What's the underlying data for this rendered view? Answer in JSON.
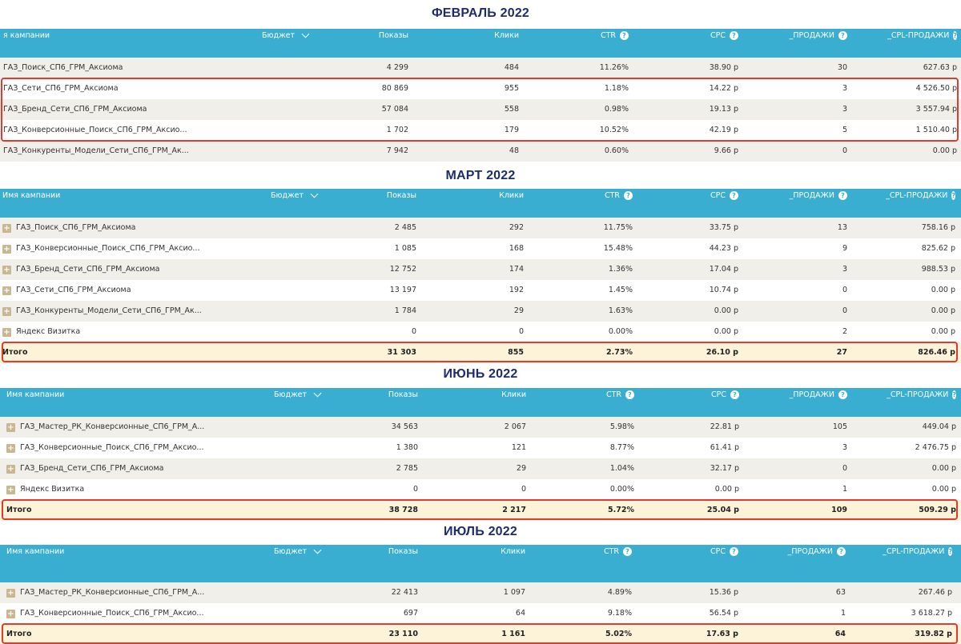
{
  "sections": [
    {
      "title": "ФЕВРАЛЬ 2022",
      "headers": {
        "name": "я кампании",
        "budget": "Бюджет",
        "shows": "Показы",
        "clicks": "Клики",
        "ctr": "CTR",
        "cpc": "CPC",
        "sales": "_ПРОДАЖИ",
        "cpl": "_CPL-ПРОДАЖИ"
      },
      "help_glyph": "?",
      "rows": [
        {
          "name": "ГАЗ_Поиск_СП6_ГРМ_Аксиома",
          "shows": "4 299",
          "clicks": "484",
          "ctr": "11.26%",
          "cpc": "38.90 р",
          "sales": "30",
          "cpl": "627.63 р"
        },
        {
          "name": "ГАЗ_Сети_СП6_ГРМ_Аксиома",
          "shows": "80 869",
          "clicks": "955",
          "ctr": "1.18%",
          "cpc": "14.22 р",
          "sales": "3",
          "cpl": "4 526.50 р"
        },
        {
          "name": "ГАЗ_Бренд_Сети_СП6_ГРМ_Аксиома",
          "shows": "57 084",
          "clicks": "558",
          "ctr": "0.98%",
          "cpc": "19.13 р",
          "sales": "3",
          "cpl": "3 557.94 р"
        },
        {
          "name": "ГАЗ_Конверсионные_Поиск_СП6_ГРМ_Аксио...",
          "shows": "1 702",
          "clicks": "179",
          "ctr": "10.52%",
          "cpc": "42.19 р",
          "sales": "5",
          "cpl": "1 510.40 р"
        },
        {
          "name": "ГАЗ_Конкуренты_Модели_Сети_СП6_ГРМ_Ак...",
          "shows": "7 942",
          "clicks": "48",
          "ctr": "0.60%",
          "cpc": "9.66 р",
          "sales": "0",
          "cpl": "0.00 р"
        }
      ]
    },
    {
      "title": "МАРТ 2022",
      "headers": {
        "name": "Имя кампании",
        "budget": "Бюджет",
        "shows": "Показы",
        "clicks": "Клики",
        "ctr": "CTR",
        "cpc": "CPC",
        "sales": "_ПРОДАЖИ",
        "cpl": "_CPL-ПРОДАЖИ"
      },
      "help_glyph": "?",
      "expand_glyph": "+",
      "rows": [
        {
          "name": "ГАЗ_Поиск_СП6_ГРМ_Аксиома",
          "shows": "2 485",
          "clicks": "292",
          "ctr": "11.75%",
          "cpc": "33.75 р",
          "sales": "13",
          "cpl": "758.16 р"
        },
        {
          "name": "ГАЗ_Конверсионные_Поиск_СП6_ГРМ_Аксио...",
          "shows": "1 085",
          "clicks": "168",
          "ctr": "15.48%",
          "cpc": "44.23 р",
          "sales": "9",
          "cpl": "825.62 р"
        },
        {
          "name": "ГАЗ_Бренд_Сети_СП6_ГРМ_Аксиома",
          "shows": "12 752",
          "clicks": "174",
          "ctr": "1.36%",
          "cpc": "17.04 р",
          "sales": "3",
          "cpl": "988.53 р"
        },
        {
          "name": "ГАЗ_Сети_СП6_ГРМ_Аксиома",
          "shows": "13 197",
          "clicks": "192",
          "ctr": "1.45%",
          "cpc": "10.74 р",
          "sales": "0",
          "cpl": "0.00 р"
        },
        {
          "name": "ГАЗ_Конкуренты_Модели_Сети_СП6_ГРМ_Ак...",
          "shows": "1 784",
          "clicks": "29",
          "ctr": "1.63%",
          "cpc": "0.00 р",
          "sales": "0",
          "cpl": "0.00 р"
        },
        {
          "name": "Яндекс Визитка",
          "shows": "0",
          "clicks": "0",
          "ctr": "0.00%",
          "cpc": "0.00 р",
          "sales": "2",
          "cpl": "0.00 р"
        }
      ],
      "total": {
        "name": "Итого",
        "shows": "31 303",
        "clicks": "855",
        "ctr": "2.73%",
        "cpc": "26.10 р",
        "sales": "27",
        "cpl": "826.46 р"
      }
    },
    {
      "title": "ИЮНЬ 2022",
      "headers": {
        "name": "Имя кампании",
        "budget": "Бюджет",
        "shows": "Показы",
        "clicks": "Клики",
        "ctr": "CTR",
        "cpc": "CPC",
        "sales": "_ПРОДАЖИ",
        "cpl": "_CPL-ПРОДАЖИ"
      },
      "help_glyph": "?",
      "expand_glyph": "+",
      "rows": [
        {
          "name": "ГАЗ_Мастер_РК_Конверсионные_СП6_ГРМ_А...",
          "shows": "34 563",
          "clicks": "2 067",
          "ctr": "5.98%",
          "cpc": "22.81 р",
          "sales": "105",
          "cpl": "449.04 р"
        },
        {
          "name": "ГАЗ_Конверсионные_Поиск_СП6_ГРМ_Аксио...",
          "shows": "1 380",
          "clicks": "121",
          "ctr": "8.77%",
          "cpc": "61.41 р",
          "sales": "3",
          "cpl": "2 476.75 р"
        },
        {
          "name": "ГАЗ_Бренд_Сети_СП6_ГРМ_Аксиома",
          "shows": "2 785",
          "clicks": "29",
          "ctr": "1.04%",
          "cpc": "32.17 р",
          "sales": "0",
          "cpl": "0.00 р"
        },
        {
          "name": "Яндекс Визитка",
          "shows": "0",
          "clicks": "0",
          "ctr": "0.00%",
          "cpc": "0.00 р",
          "sales": "1",
          "cpl": "0.00 р"
        }
      ],
      "total": {
        "name": "Итого",
        "shows": "38 728",
        "clicks": "2 217",
        "ctr": "5.72%",
        "cpc": "25.04 р",
        "sales": "109",
        "cpl": "509.29 р"
      }
    },
    {
      "title": "ИЮЛЬ 2022",
      "headers": {
        "name": "Имя кампании",
        "budget": "Бюджет",
        "shows": "Показы",
        "clicks": "Клики",
        "ctr": "CTR",
        "cpc": "CPC",
        "sales": "_ПРОДАЖИ",
        "cpl": "_CPL-ПРОДАЖИ"
      },
      "help_glyph": "?",
      "expand_glyph": "+",
      "rows": [
        {
          "name": "ГАЗ_Мастер_РК_Конверсионные_СП6_ГРМ_А...",
          "shows": "22 413",
          "clicks": "1 097",
          "ctr": "4.89%",
          "cpc": "15.36 р",
          "sales": "63",
          "cpl": "267.46 р"
        },
        {
          "name": "ГАЗ_Конверсионные_Поиск_СП6_ГРМ_Аксио...",
          "shows": "697",
          "clicks": "64",
          "ctr": "9.18%",
          "cpc": "56.54 р",
          "sales": "1",
          "cpl": "3 618.27 р"
        }
      ],
      "total": {
        "name": "Итого",
        "shows": "23 110",
        "clicks": "1 161",
        "ctr": "5.02%",
        "cpc": "17.63 р",
        "sales": "64",
        "cpl": "319.82 р"
      }
    }
  ],
  "colors": {
    "header_bg": "#3aaed1",
    "title": "#1d2d6b",
    "highlight": "#e23a2e",
    "total_bg": "#fdf3d8",
    "row_alt": "#f1efe9"
  }
}
